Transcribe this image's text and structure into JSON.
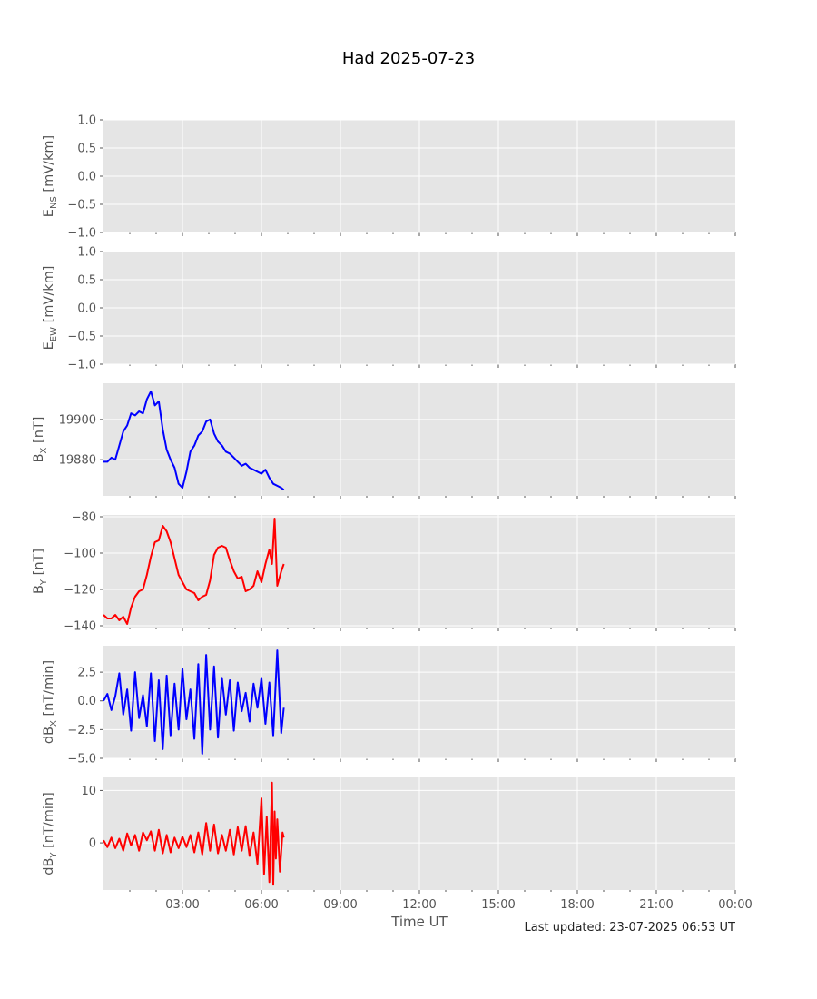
{
  "figure": {
    "title": "Had 2025-07-23",
    "xlabel": "Time UT",
    "footer": "Last updated: 23-07-2025 06:53 UT",
    "x_ticks": [
      "03:00",
      "06:00",
      "09:00",
      "12:00",
      "15:00",
      "18:00",
      "21:00",
      "00:00"
    ]
  },
  "chart_data": [
    {
      "type": "line",
      "ylabel": "E_NS [mV/km]",
      "ylabel_main": "E",
      "ylabel_sub": "NS",
      "ylabel_rest": " [mV/km]",
      "ylim": [
        -1.0,
        1.0
      ],
      "yticks": [
        "-1.0",
        "-0.5",
        "0.0",
        "0.5",
        "1.0"
      ],
      "ytick_values": [
        -1.0,
        -0.5,
        0.0,
        0.5,
        1.0
      ],
      "x": [],
      "y": [],
      "color": "#0000ff"
    },
    {
      "type": "line",
      "ylabel": "E_EW [mV/km]",
      "ylabel_main": "E",
      "ylabel_sub": "EW",
      "ylabel_rest": " [mV/km]",
      "ylim": [
        -1.0,
        1.0
      ],
      "yticks": [
        "-1.0",
        "-0.5",
        "0.0",
        "0.5",
        "1.0"
      ],
      "ytick_values": [
        -1.0,
        -0.5,
        0.0,
        0.5,
        1.0
      ],
      "x": [],
      "y": [],
      "color": "#0000ff"
    },
    {
      "type": "line",
      "ylabel": "B_X [nT]",
      "ylabel_main": "B",
      "ylabel_sub": "X",
      "ylabel_rest": " [nT]",
      "ylim": [
        19862,
        19918
      ],
      "yticks": [
        "19880",
        "19900"
      ],
      "ytick_values": [
        19880,
        19900
      ],
      "x": [
        0.0,
        0.15,
        0.3,
        0.45,
        0.6,
        0.75,
        0.9,
        1.05,
        1.2,
        1.35,
        1.5,
        1.65,
        1.8,
        1.95,
        2.1,
        2.25,
        2.4,
        2.55,
        2.7,
        2.85,
        3.0,
        3.15,
        3.3,
        3.45,
        3.6,
        3.75,
        3.9,
        4.05,
        4.2,
        4.35,
        4.5,
        4.65,
        4.8,
        4.95,
        5.1,
        5.25,
        5.4,
        5.55,
        5.7,
        5.85,
        6.0,
        6.15,
        6.3,
        6.45,
        6.6,
        6.75,
        6.85
      ],
      "y": [
        19879,
        19879,
        19881,
        19880,
        19887,
        19894,
        19897,
        19903,
        19902,
        19904,
        19903,
        19910,
        19914,
        19907,
        19909,
        19895,
        19885,
        19880,
        19876,
        19868,
        19866,
        19874,
        19884,
        19887,
        19892,
        19894,
        19899,
        19900,
        19893,
        19889,
        19887,
        19884,
        19883,
        19881,
        19879,
        19877,
        19878,
        19876,
        19875,
        19874,
        19873,
        19875,
        19871,
        19868,
        19867,
        19866,
        19865
      ],
      "color": "#0000ff"
    },
    {
      "type": "line",
      "ylabel": "B_Y [nT]",
      "ylabel_main": "B",
      "ylabel_sub": "Y",
      "ylabel_rest": " [nT]",
      "ylim": [
        -141,
        -79
      ],
      "yticks": [
        "-140",
        "-120",
        "-100",
        "-80"
      ],
      "ytick_values": [
        -140,
        -120,
        -100,
        -80
      ],
      "x": [
        0.0,
        0.15,
        0.3,
        0.45,
        0.6,
        0.75,
        0.9,
        1.05,
        1.2,
        1.35,
        1.5,
        1.65,
        1.8,
        1.95,
        2.1,
        2.25,
        2.4,
        2.55,
        2.7,
        2.85,
        3.0,
        3.15,
        3.3,
        3.45,
        3.6,
        3.75,
        3.9,
        4.05,
        4.2,
        4.35,
        4.5,
        4.65,
        4.8,
        4.95,
        5.1,
        5.25,
        5.4,
        5.55,
        5.7,
        5.85,
        6.0,
        6.15,
        6.3,
        6.4,
        6.5,
        6.6,
        6.75,
        6.85
      ],
      "y": [
        -134,
        -136,
        -136,
        -134,
        -137,
        -135,
        -139,
        -130,
        -124,
        -121,
        -120,
        -112,
        -102,
        -94,
        -93,
        -85,
        -88,
        -94,
        -103,
        -112,
        -116,
        -120,
        -121,
        -122,
        -126,
        -124,
        -123,
        -115,
        -101,
        -97,
        -96,
        -97,
        -104,
        -110,
        -114,
        -113,
        -121,
        -120,
        -118,
        -110,
        -116,
        -106,
        -98,
        -106,
        -81,
        -118,
        -110,
        -106
      ],
      "color": "#ff0000"
    },
    {
      "type": "line",
      "ylabel": "dB_X [nT/min]",
      "ylabel_main": "dB",
      "ylabel_sub": "X",
      "ylabel_rest": " [nT/min]",
      "ylim": [
        -5.0,
        4.8
      ],
      "yticks": [
        "-5.0",
        "-2.5",
        "0.0",
        "2.5"
      ],
      "ytick_values": [
        -5.0,
        -2.5,
        0.0,
        2.5
      ],
      "x": [
        0.0,
        0.15,
        0.3,
        0.45,
        0.6,
        0.75,
        0.9,
        1.05,
        1.2,
        1.35,
        1.5,
        1.65,
        1.8,
        1.95,
        2.1,
        2.25,
        2.4,
        2.55,
        2.7,
        2.85,
        3.0,
        3.15,
        3.3,
        3.45,
        3.6,
        3.75,
        3.9,
        4.05,
        4.2,
        4.35,
        4.5,
        4.65,
        4.8,
        4.95,
        5.1,
        5.25,
        5.4,
        5.55,
        5.7,
        5.85,
        6.0,
        6.15,
        6.3,
        6.45,
        6.6,
        6.75,
        6.85
      ],
      "y": [
        0.0,
        0.6,
        -0.8,
        0.4,
        2.4,
        -1.2,
        1.0,
        -2.6,
        2.5,
        -1.5,
        0.5,
        -2.2,
        2.4,
        -3.5,
        1.8,
        -4.2,
        2.2,
        -3.0,
        1.5,
        -2.5,
        2.8,
        -1.6,
        1.0,
        -3.3,
        3.2,
        -4.6,
        4.0,
        -2.5,
        3.0,
        -3.2,
        2.0,
        -1.2,
        1.8,
        -2.6,
        1.6,
        -0.9,
        0.7,
        -1.8,
        1.5,
        -0.6,
        2.0,
        -2.0,
        1.6,
        -3.0,
        4.4,
        -2.8,
        -0.6
      ],
      "color": "#0000ff"
    },
    {
      "type": "line",
      "ylabel": "dB_Y [nT/min]",
      "ylabel_main": "dB",
      "ylabel_sub": "Y",
      "ylabel_rest": " [nT/min]",
      "ylim": [
        -9,
        12.5
      ],
      "yticks": [
        "0",
        "10"
      ],
      "ytick_values": [
        0,
        10
      ],
      "x": [
        0.0,
        0.15,
        0.3,
        0.45,
        0.6,
        0.75,
        0.9,
        1.05,
        1.2,
        1.35,
        1.5,
        1.65,
        1.8,
        1.95,
        2.1,
        2.25,
        2.4,
        2.55,
        2.7,
        2.85,
        3.0,
        3.15,
        3.3,
        3.45,
        3.6,
        3.75,
        3.9,
        4.05,
        4.2,
        4.35,
        4.5,
        4.65,
        4.8,
        4.95,
        5.1,
        5.25,
        5.4,
        5.55,
        5.7,
        5.85,
        6.0,
        6.1,
        6.2,
        6.3,
        6.4,
        6.45,
        6.5,
        6.55,
        6.6,
        6.7,
        6.8,
        6.85
      ],
      "y": [
        0.5,
        -0.8,
        1.0,
        -1.0,
        0.8,
        -1.5,
        1.8,
        -0.5,
        1.5,
        -1.5,
        2.0,
        0.5,
        2.2,
        -1.5,
        2.5,
        -2.0,
        1.5,
        -1.8,
        1.0,
        -1.0,
        1.2,
        -0.8,
        1.5,
        -1.8,
        2.0,
        -2.2,
        3.8,
        -1.5,
        3.5,
        -2.0,
        1.5,
        -1.5,
        2.5,
        -2.2,
        3.0,
        -1.5,
        3.2,
        -2.5,
        2.0,
        -4.0,
        8.5,
        -6.0,
        5.0,
        -7.5,
        11.5,
        -8.0,
        6.0,
        -3.0,
        4.5,
        -5.5,
        2.0,
        1.0
      ],
      "color": "#ff0000"
    }
  ]
}
